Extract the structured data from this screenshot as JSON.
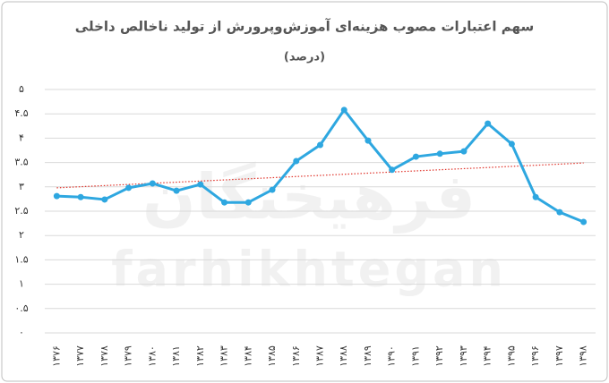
{
  "chart_data": {
    "type": "line",
    "title": "سهم اعتبارات مصوب هزینه‌ای آموزش‌وپرورش از تولید ناخالص داخلی",
    "subtitle": "(درصد)",
    "watermark": [
      "فرهیختگان",
      "farhikhtegan"
    ],
    "categories": [
      "۱۳۷۶",
      "۱۳۷۷",
      "۱۳۷۸",
      "۱۳۷۹",
      "۱۳۸۰",
      "۱۳۸۱",
      "۱۳۸۲",
      "۱۳۸۳",
      "۱۳۸۴",
      "۱۳۸۵",
      "۱۳۸۶",
      "۱۳۸۷",
      "۱۳۸۸",
      "۱۳۸۹",
      "۱۳۹۰",
      "۱۳۹۱",
      "۱۳۹۲",
      "۱۳۹۳",
      "۱۳۹۴",
      "۱۳۹۵",
      "۱۳۹۶",
      "۱۳۹۷",
      "۱۳۹۸"
    ],
    "values": [
      2.81,
      2.79,
      2.74,
      2.98,
      3.07,
      2.92,
      3.05,
      2.68,
      2.68,
      2.94,
      3.53,
      3.86,
      4.58,
      3.95,
      3.35,
      3.62,
      3.68,
      3.73,
      4.3,
      3.88,
      2.79,
      2.48,
      2.28
    ],
    "color": "#2ea7e0",
    "trendline": {
      "color": "#e0342b",
      "values": [
        2.98,
        3.49
      ]
    },
    "ylim": [
      0,
      5
    ],
    "yticks": [
      {
        "value": 0,
        "label": "۰"
      },
      {
        "value": 0.5,
        "label": "۰.۵"
      },
      {
        "value": 1,
        "label": "۱"
      },
      {
        "value": 1.5,
        "label": "۱.۵"
      },
      {
        "value": 2,
        "label": "۲"
      },
      {
        "value": 2.5,
        "label": "۲.۵"
      },
      {
        "value": 3,
        "label": "۳"
      },
      {
        "value": 3.5,
        "label": "۳.۵"
      },
      {
        "value": 4,
        "label": "۴"
      },
      {
        "value": 4.5,
        "label": "۴.۵"
      },
      {
        "value": 5,
        "label": "۵"
      }
    ],
    "grid": true
  }
}
